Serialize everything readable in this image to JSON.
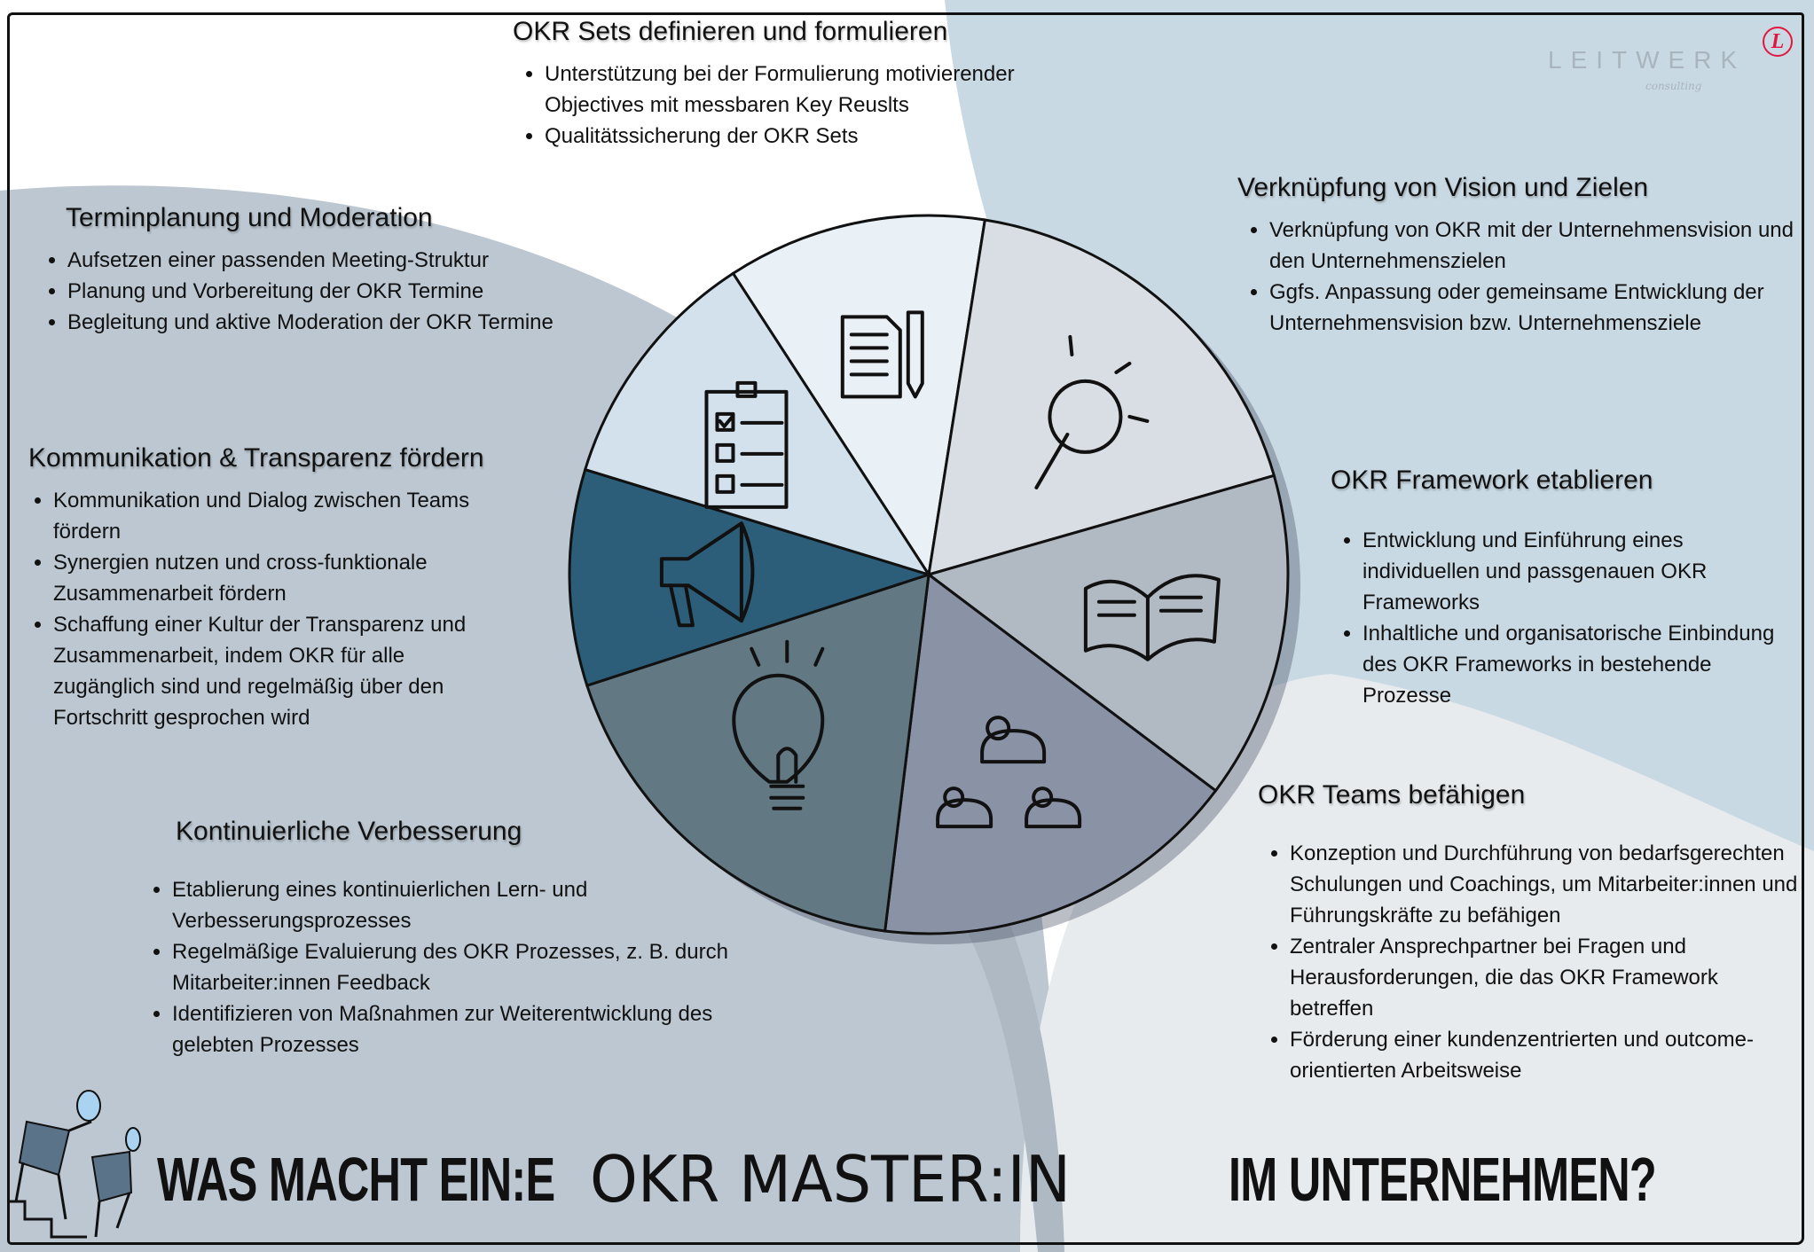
{
  "logo": {
    "name": "LEITWERK",
    "sub": "consulting",
    "mark": "L",
    "mark_color": "#e2173f"
  },
  "title": {
    "part1": "WAS MACHT EIN:E",
    "part2": "OKR MASTER:IN",
    "part3": "IM UNTERNEHMEN?"
  },
  "sections": {
    "okr_sets": {
      "heading": "OKR Sets definieren und formulieren",
      "bullets": [
        "Unterstützung bei der Formulierung motivierender Objectives mit messbaren Key Reuslts",
        "Qualitätssicherung der OKR Sets"
      ]
    },
    "terminplanung": {
      "heading": "Terminplanung und Moderation",
      "bullets": [
        "Aufsetzen einer passenden Meeting-Struktur",
        "Planung und Vorbereitung der OKR Termine",
        "Begleitung und aktive Moderation der OKR Termine"
      ]
    },
    "kommunikation": {
      "heading": "Kommunikation & Transparenz fördern",
      "bullets": [
        "Kommunikation und Dialog zwischen Teams fördern",
        "Synergien nutzen und cross-funktionale Zusammenarbeit fördern",
        "Schaffung einer Kultur der Transparenz und Zusammenarbeit, indem OKR für alle zugänglich sind und regelmäßig über den Fortschritt gesprochen wird"
      ]
    },
    "verbesserung": {
      "heading": "Kontinuierliche Verbesserung",
      "bullets": [
        "Etablierung eines kontinuierlichen Lern- und Verbesserungsprozesses",
        "Regelmäßige Evaluierung des OKR Prozesses, z. B. durch Mitarbeiter:innen Feedback",
        "Identifizieren von Maßnahmen zur Weiterentwicklung des gelebten Prozesses"
      ]
    },
    "verknuepfung": {
      "heading": "Verknüpfung von Vision und Zielen",
      "bullets": [
        "Verknüpfung von OKR mit der Unternehmensvision und den Unternehmenszielen",
        "Ggfs. Anpassung oder gemeinsame Entwicklung der Unternehmensvision bzw. Unternehmensziele"
      ]
    },
    "framework": {
      "heading": "OKR Framework etablieren",
      "bullets": [
        "Entwicklung und Einführung eines individuellen und passgenauen OKR Frameworks",
        "Inhaltliche und organisatorische Einbindung des OKR Frameworks in bestehende Prozesse"
      ]
    },
    "teams": {
      "heading": "OKR Teams befähigen",
      "bullets": [
        "Konzeption und Durchführung von bedarfsgerechten Schulungen und Coachings, um Mitarbeiter:innen und Führungskräfte zu befähigen",
        "Zentraler Ansprechpartner bei Fragen und Herausforderungen, die das OKR Framework betreffen",
        "Förderung einer kundenzentrierten und outcome-orientierten Arbeitsweise"
      ]
    }
  },
  "pie": {
    "slices": [
      {
        "topic": "okr_sets",
        "icon": "documents-pencil-icon",
        "color": "#e9f1f7"
      },
      {
        "topic": "verknuepfung",
        "icon": "magnifier-icon",
        "color": "#d9dee4"
      },
      {
        "topic": "framework",
        "icon": "open-book-icon",
        "color": "#b1b9c3"
      },
      {
        "topic": "teams",
        "icon": "people-icon",
        "color": "#8a93a6"
      },
      {
        "topic": "verbesserung",
        "icon": "lightbulb-icon",
        "color": "#627882"
      },
      {
        "topic": "kommunikation",
        "icon": "megaphone-icon",
        "color": "#2c5e79"
      },
      {
        "topic": "terminplanung",
        "icon": "clipboard-checklist-icon",
        "color": "#d2e1eb"
      }
    ]
  }
}
